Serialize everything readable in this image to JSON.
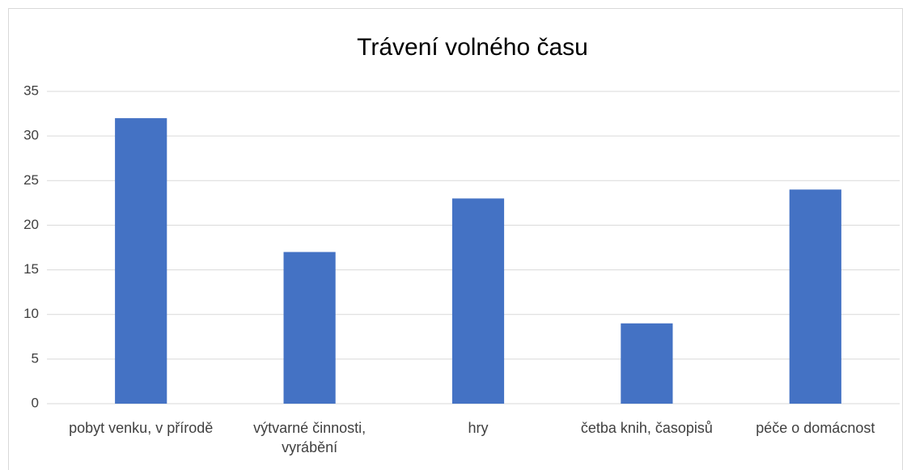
{
  "chart_data": {
    "type": "bar",
    "title": "Trávení volného času",
    "categories": [
      "pobyt venku, v přírodě",
      "výtvarné činnosti, vyrábění",
      "hry",
      "četba knih, časopisů",
      "péče o domácnost"
    ],
    "values": [
      32,
      17,
      23,
      9,
      24
    ],
    "color": "#4472c4",
    "ylim": [
      0,
      35
    ],
    "yticks": [
      0,
      5,
      10,
      15,
      20,
      25,
      30,
      35
    ],
    "grid": true
  }
}
